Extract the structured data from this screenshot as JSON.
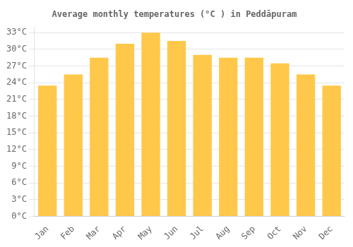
{
  "chart_data": {
    "type": "bar",
    "title": "Average monthly temperatures (°C ) in Peddāpuram",
    "categories": [
      "Jan",
      "Feb",
      "Mar",
      "Apr",
      "May",
      "Jun",
      "Jul",
      "Aug",
      "Sep",
      "Oct",
      "Nov",
      "Dec"
    ],
    "values": [
      23.5,
      25.5,
      28.5,
      31.0,
      33.0,
      31.5,
      29.0,
      28.5,
      28.5,
      27.5,
      25.5,
      23.5
    ],
    "color": "#FFC84A",
    "ylim": [
      0,
      34
    ],
    "yticks": [
      {
        "value": 0,
        "label": "0°C"
      },
      {
        "value": 3,
        "label": "3°C"
      },
      {
        "value": 6,
        "label": "6°C"
      },
      {
        "value": 9,
        "label": "9°C"
      },
      {
        "value": 12,
        "label": "12°C"
      },
      {
        "value": 15,
        "label": "15°C"
      },
      {
        "value": 18,
        "label": "18°C"
      },
      {
        "value": 21,
        "label": "21°C"
      },
      {
        "value": 24,
        "label": "24°C"
      },
      {
        "value": 27,
        "label": "27°C"
      },
      {
        "value": 30,
        "label": "30°C"
      },
      {
        "value": 33,
        "label": "33°C"
      }
    ],
    "grid": true
  }
}
